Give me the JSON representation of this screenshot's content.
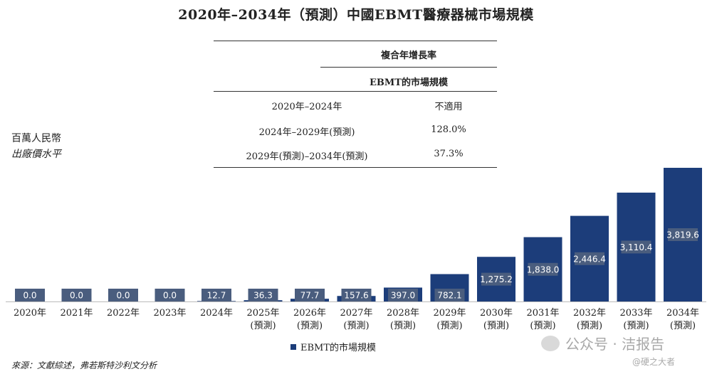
{
  "title": "2020年–2034年（預測）中國EBMT醫療器械市場規模",
  "cagr_table": {
    "header_top": "複合年增長率",
    "header_sub": "EBMT的市場規模",
    "rows": [
      {
        "period": "2020年–2024年",
        "value": "不適用"
      },
      {
        "period": "2024年–2029年(預測)",
        "value": "128.0%"
      },
      {
        "period": "2029年(預測)–2034年(預測)",
        "value": "37.3%"
      }
    ]
  },
  "unit_label": {
    "line1": "百萬人民幣",
    "line2": "出廠價水平"
  },
  "source": "來源：文獻綜述，弗若斯特沙利文分析",
  "legend_label": "EBMT的市場規模",
  "watermark": {
    "text": "公众号 · 洁报告",
    "sub": "@硬之大者"
  },
  "colors": {
    "bar": "#1c3d7a",
    "label_bg": "#4a5d7e",
    "axis": "#bbbbbb"
  },
  "chart_data": {
    "type": "bar",
    "title": "2020年–2034年（預測）中國EBMT醫療器械市場規模",
    "ylabel": "百萬人民幣 出廠價水平",
    "xlabel": "",
    "categories": [
      "2020年",
      "2021年",
      "2022年",
      "2023年",
      "2024年",
      "2025年",
      "2026年",
      "2027年",
      "2028年",
      "2029年",
      "2030年",
      "2031年",
      "2032年",
      "2033年",
      "2034年"
    ],
    "category_sublabels": [
      "",
      "",
      "",
      "",
      "",
      "(預測)",
      "(預測)",
      "(預測)",
      "(預測)",
      "(預測)",
      "(預測)",
      "(預測)",
      "(預測)",
      "(預測)",
      "(預測)"
    ],
    "values": [
      0.0,
      0.0,
      0.0,
      0.0,
      12.7,
      36.3,
      77.7,
      157.6,
      397.0,
      782.1,
      1275.2,
      1838.0,
      2446.4,
      3110.4,
      3819.6
    ],
    "value_labels": [
      "0.0",
      "0.0",
      "0.0",
      "0.0",
      "12.7",
      "36.3",
      "77.7",
      "157.6",
      "397.0",
      "782.1",
      "1,275.2",
      "1,838.0",
      "2,446.4",
      "3,110.4",
      "3,819.6"
    ],
    "series": [
      {
        "name": "EBMT的市場規模"
      }
    ],
    "ylim": [
      0,
      3819.6
    ],
    "grid": false,
    "legend": "bottom-center"
  }
}
